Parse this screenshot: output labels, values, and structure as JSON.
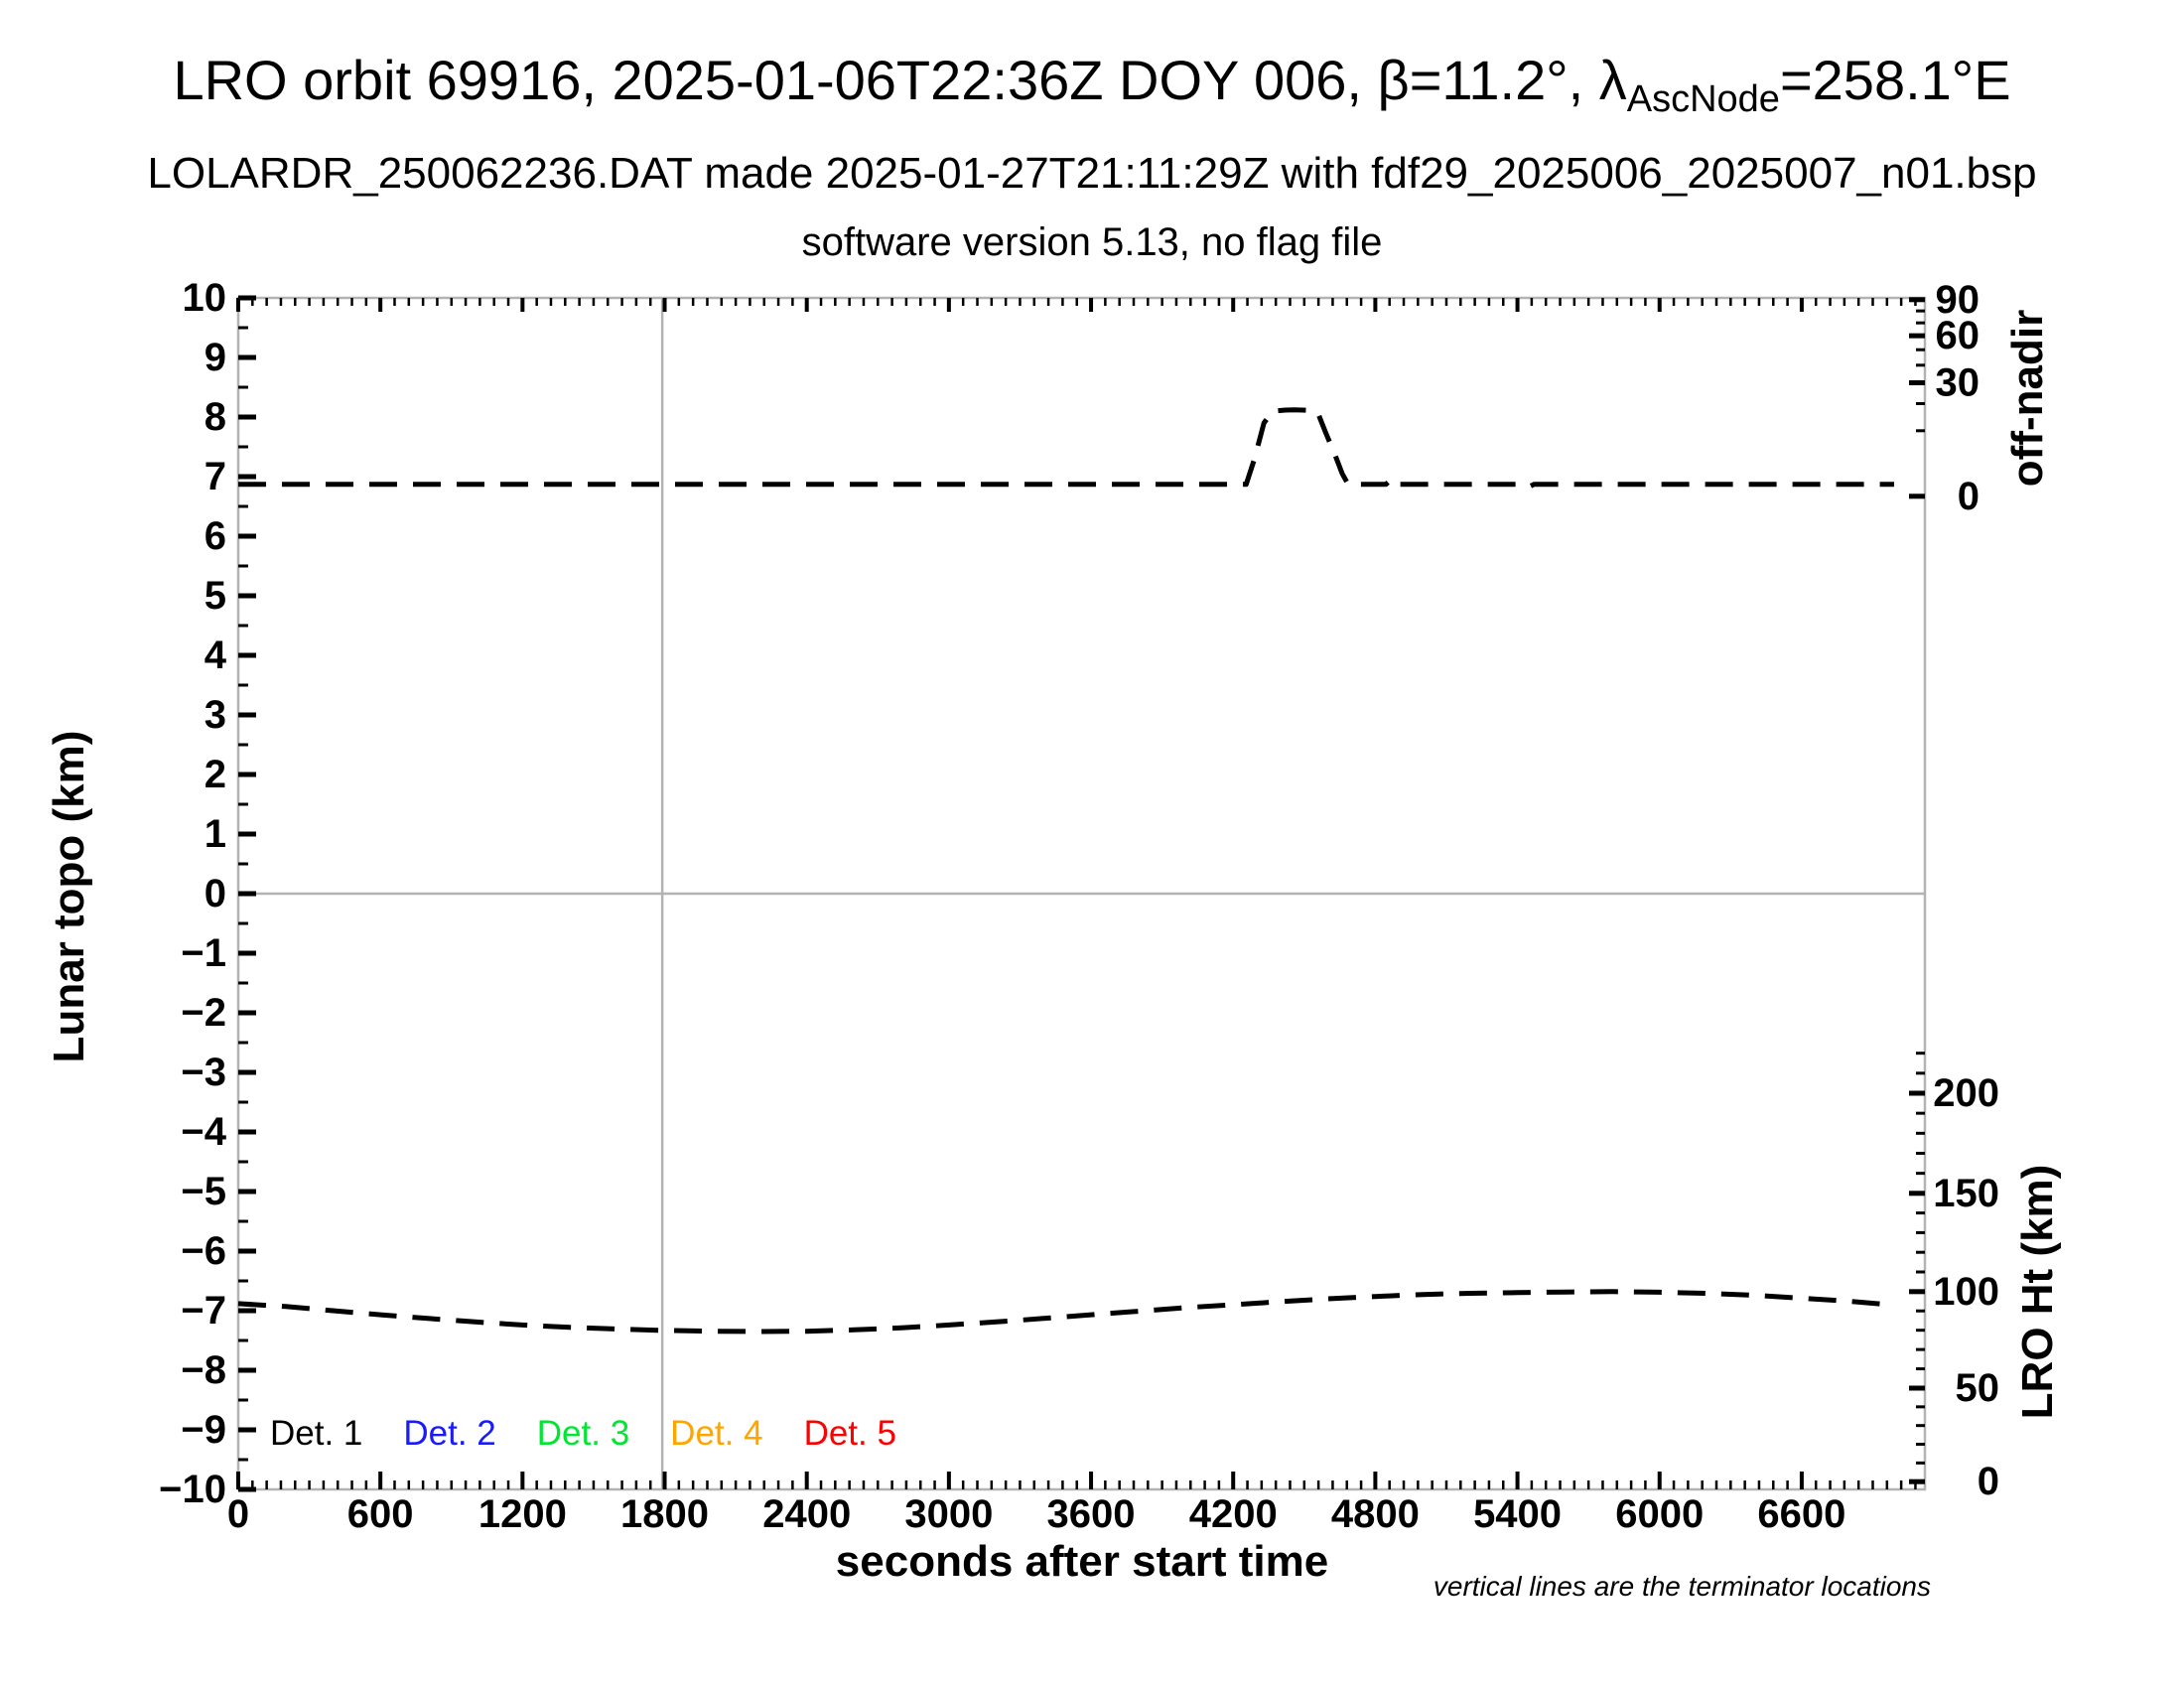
{
  "header": {
    "title_prefix": "LRO orbit 69916, 2025-01-06T22:36Z DOY 006, β=11.2°, λ",
    "title_subscript": "AscNode",
    "title_suffix": "=258.1°E",
    "subtitle": "LOLARDR_250062236.DAT made 2025-01-27T21:11:29Z with fdf29_2025006_2025007_n01.bsp",
    "software_note": "software version 5.13, no flag file"
  },
  "footnote": "vertical lines are the terminator locations",
  "legend": {
    "items": [
      {
        "label": "Det. 1",
        "color": "#000000"
      },
      {
        "label": "Det. 2",
        "color": "#1a1aff"
      },
      {
        "label": "Det. 3",
        "color": "#00e632"
      },
      {
        "label": "Det. 4",
        "color": "#ffa500"
      },
      {
        "label": "Det. 5",
        "color": "#ff0000"
      }
    ]
  },
  "colors": {
    "frame": "#b3b3b3",
    "reference_lines": "#b3b3b3",
    "curves": "#000000",
    "ticks": "#000000"
  },
  "chart_data": {
    "type": "line",
    "xlabel": "seconds after start time",
    "ylabel_left": "Lunar topo (km)",
    "x_range": [
      0,
      7120
    ],
    "y_left_range": [
      -10,
      10
    ],
    "x_major_tick_step": 600,
    "x_major_tick_labels": [
      0,
      600,
      1200,
      1800,
      2400,
      3000,
      3600,
      4200,
      4800,
      5400,
      6000,
      6600
    ],
    "x_minor_tick_step": 60,
    "y_left_tick_labels": [
      10,
      9,
      8,
      7,
      6,
      5,
      4,
      3,
      2,
      1,
      0,
      -1,
      -2,
      -3,
      -4,
      -5,
      -6,
      -7,
      -8,
      -9,
      -10
    ],
    "y_left_minor_step": 0.5,
    "grid": "zero-line-only",
    "zero_line_y": 0,
    "terminator_lines_x": [
      1790
    ],
    "right_top_axis": {
      "label": "off-nadir",
      "units": "deg",
      "scale": "sqrt",
      "tick_labels": [
        90,
        60,
        30,
        0
      ],
      "minor_ticks": [
        10,
        20,
        40,
        50,
        70,
        80
      ],
      "zero_topo": 6.67,
      "span_topo": 3.3
    },
    "right_bottom_axis": {
      "label": "LRO Ht (km)",
      "units": "km",
      "scale": "linear",
      "tick_labels": [
        200,
        150,
        100,
        50,
        0
      ],
      "minor_step": 10,
      "minor_max": 220,
      "anchors_km_to_topo": [
        [
          0,
          -9.87
        ],
        [
          50,
          -8.3
        ],
        [
          100,
          -6.68
        ],
        [
          150,
          -5.03
        ],
        [
          200,
          -3.35
        ]
      ]
    },
    "series": [
      {
        "name": "off-nadir angle",
        "axis": "right_top",
        "units": "deg",
        "style": "dashed",
        "color": "#000000",
        "points": [
          [
            0,
            0.33
          ],
          [
            600,
            0.33
          ],
          [
            1200,
            0.33
          ],
          [
            1800,
            0.33
          ],
          [
            2400,
            0.33
          ],
          [
            3000,
            0.33
          ],
          [
            3600,
            0.33
          ],
          [
            4255,
            0.33
          ],
          [
            4290,
            3.3
          ],
          [
            4330,
            12.5
          ],
          [
            4367,
            16.9
          ],
          [
            4420,
            17.3
          ],
          [
            4460,
            17.4
          ],
          [
            4520,
            17.2
          ],
          [
            4556,
            16.5
          ],
          [
            4590,
            9.5
          ],
          [
            4630,
            4.0
          ],
          [
            4660,
            1.2
          ],
          [
            4685,
            0.33
          ],
          [
            4845,
            0.33
          ],
          [
            4871,
            0.7
          ],
          [
            4895,
            0.33
          ],
          [
            5425,
            0.33
          ],
          [
            5449,
            0.21
          ],
          [
            5470,
            0.33
          ],
          [
            6000,
            0.33
          ],
          [
            6500,
            0.33
          ],
          [
            6990,
            0.33
          ]
        ]
      },
      {
        "name": "LRO height",
        "axis": "right_bottom",
        "units": "km",
        "style": "dashed",
        "color": "#000000",
        "points": [
          [
            0,
            93.8
          ],
          [
            200,
            92.3
          ],
          [
            400,
            90.1
          ],
          [
            600,
            88.0
          ],
          [
            800,
            86.1
          ],
          [
            1000,
            84.3
          ],
          [
            1200,
            82.7
          ],
          [
            1400,
            81.5
          ],
          [
            1600,
            80.6
          ],
          [
            1800,
            79.9
          ],
          [
            2000,
            79.5
          ],
          [
            2200,
            79.3
          ],
          [
            2400,
            79.5
          ],
          [
            2600,
            80.2
          ],
          [
            2800,
            81.2
          ],
          [
            3000,
            82.7
          ],
          [
            3200,
            84.3
          ],
          [
            3400,
            86.1
          ],
          [
            3600,
            88.0
          ],
          [
            3800,
            89.8
          ],
          [
            4000,
            91.7
          ],
          [
            4200,
            93.2
          ],
          [
            4400,
            94.8
          ],
          [
            4600,
            96.3
          ],
          [
            4800,
            97.5
          ],
          [
            5000,
            98.5
          ],
          [
            5200,
            99.1
          ],
          [
            5400,
            99.5
          ],
          [
            5600,
            99.8
          ],
          [
            5800,
            100.0
          ],
          [
            6000,
            99.7
          ],
          [
            6200,
            99.1
          ],
          [
            6400,
            98.1
          ],
          [
            6600,
            96.6
          ],
          [
            6800,
            95.0
          ],
          [
            6990,
            93.0
          ]
        ]
      }
    ]
  }
}
